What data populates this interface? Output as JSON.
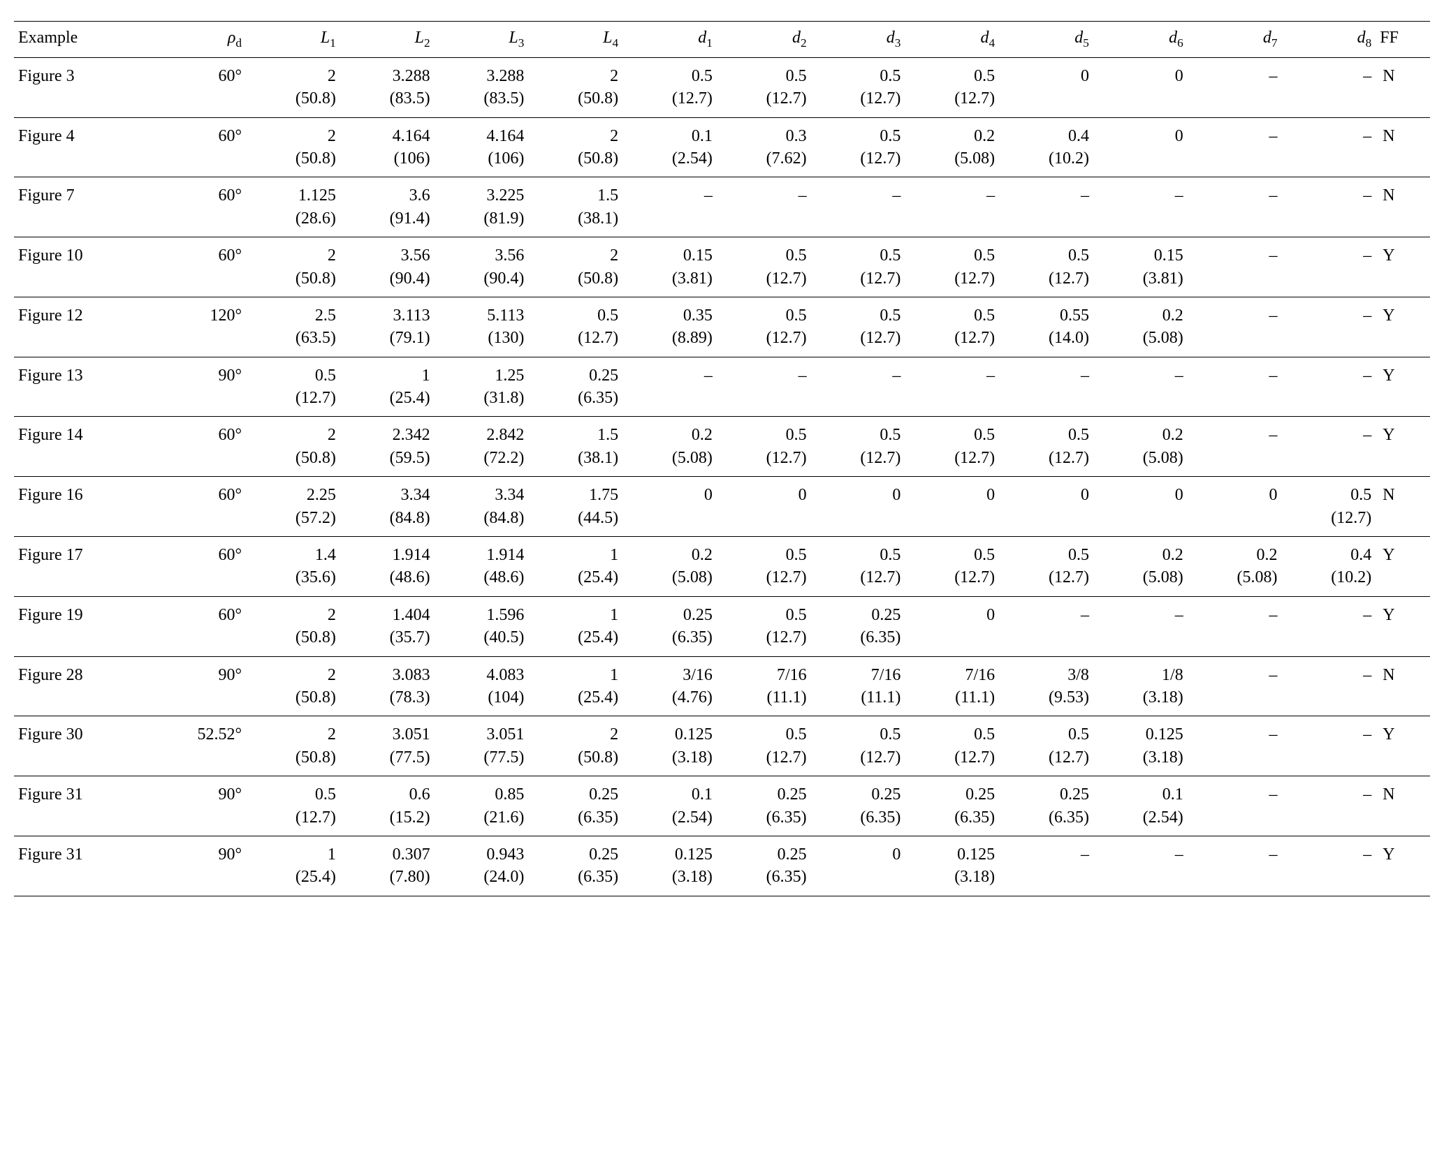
{
  "table": {
    "type": "table",
    "columns": [
      {
        "key": "example",
        "label_html": "Example",
        "align": "left"
      },
      {
        "key": "rho",
        "label_html": "<i>ρ</i><span class=\"sub\">d</span>",
        "align": "right"
      },
      {
        "key": "L1",
        "label_html": "<i>L</i><span class=\"sub\">1</span>",
        "align": "right"
      },
      {
        "key": "L2",
        "label_html": "<i>L</i><span class=\"sub\">2</span>",
        "align": "right"
      },
      {
        "key": "L3",
        "label_html": "<i>L</i><span class=\"sub\">3</span>",
        "align": "right"
      },
      {
        "key": "L4",
        "label_html": "<i>L</i><span class=\"sub\">4</span>",
        "align": "right"
      },
      {
        "key": "d1",
        "label_html": "<i>d</i><span class=\"sub\">1</span>",
        "align": "right"
      },
      {
        "key": "d2",
        "label_html": "<i>d</i><span class=\"sub\">2</span>",
        "align": "right"
      },
      {
        "key": "d3",
        "label_html": "<i>d</i><span class=\"sub\">3</span>",
        "align": "right"
      },
      {
        "key": "d4",
        "label_html": "<i>d</i><span class=\"sub\">4</span>",
        "align": "right"
      },
      {
        "key": "d5",
        "label_html": "<i>d</i><span class=\"sub\">5</span>",
        "align": "right"
      },
      {
        "key": "d6",
        "label_html": "<i>d</i><span class=\"sub\">6</span>",
        "align": "right"
      },
      {
        "key": "d7",
        "label_html": "<i>d</i><span class=\"sub\">7</span>",
        "align": "right"
      },
      {
        "key": "d8",
        "label_html": "<i>d</i><span class=\"sub\">8</span>",
        "align": "right"
      },
      {
        "key": "ff",
        "label_html": "FF",
        "align": "left"
      }
    ],
    "rows": [
      {
        "example": "Figure 3",
        "rho": "60°",
        "L1": {
          "main": "2",
          "sec": "(50.8)"
        },
        "L2": {
          "main": "3.288",
          "sec": "(83.5)"
        },
        "L3": {
          "main": "3.288",
          "sec": "(83.5)"
        },
        "L4": {
          "main": "2",
          "sec": "(50.8)"
        },
        "d1": {
          "main": "0.5",
          "sec": "(12.7)"
        },
        "d2": {
          "main": "0.5",
          "sec": "(12.7)"
        },
        "d3": {
          "main": "0.5",
          "sec": "(12.7)"
        },
        "d4": {
          "main": "0.5",
          "sec": "(12.7)"
        },
        "d5": {
          "main": "0"
        },
        "d6": {
          "main": "0"
        },
        "d7": {
          "main": "–"
        },
        "d8": {
          "main": "–"
        },
        "ff": "N"
      },
      {
        "example": "Figure 4",
        "rho": "60°",
        "L1": {
          "main": "2",
          "sec": "(50.8)"
        },
        "L2": {
          "main": "4.164",
          "sec": "(106)"
        },
        "L3": {
          "main": "4.164",
          "sec": "(106)"
        },
        "L4": {
          "main": "2",
          "sec": "(50.8)"
        },
        "d1": {
          "main": "0.1",
          "sec": "(2.54)"
        },
        "d2": {
          "main": "0.3",
          "sec": "(7.62)"
        },
        "d3": {
          "main": "0.5",
          "sec": "(12.7)"
        },
        "d4": {
          "main": "0.2",
          "sec": "(5.08)"
        },
        "d5": {
          "main": "0.4",
          "sec": "(10.2)"
        },
        "d6": {
          "main": "0"
        },
        "d7": {
          "main": "–"
        },
        "d8": {
          "main": "–"
        },
        "ff": "N"
      },
      {
        "example": "Figure 7",
        "rho": "60°",
        "L1": {
          "main": "1.125",
          "sec": "(28.6)"
        },
        "L2": {
          "main": "3.6",
          "sec": "(91.4)"
        },
        "L3": {
          "main": "3.225",
          "sec": "(81.9)"
        },
        "L4": {
          "main": "1.5",
          "sec": "(38.1)"
        },
        "d1": {
          "main": "–"
        },
        "d2": {
          "main": "–"
        },
        "d3": {
          "main": "–"
        },
        "d4": {
          "main": "–"
        },
        "d5": {
          "main": "–"
        },
        "d6": {
          "main": "–"
        },
        "d7": {
          "main": "–"
        },
        "d8": {
          "main": "–"
        },
        "ff": "N"
      },
      {
        "example": "Figure 10",
        "rho": "60°",
        "L1": {
          "main": "2",
          "sec": "(50.8)"
        },
        "L2": {
          "main": "3.56",
          "sec": "(90.4)"
        },
        "L3": {
          "main": "3.56",
          "sec": "(90.4)"
        },
        "L4": {
          "main": "2",
          "sec": "(50.8)"
        },
        "d1": {
          "main": "0.15",
          "sec": "(3.81)"
        },
        "d2": {
          "main": "0.5",
          "sec": "(12.7)"
        },
        "d3": {
          "main": "0.5",
          "sec": "(12.7)"
        },
        "d4": {
          "main": "0.5",
          "sec": "(12.7)"
        },
        "d5": {
          "main": "0.5",
          "sec": "(12.7)"
        },
        "d6": {
          "main": "0.15",
          "sec": "(3.81)"
        },
        "d7": {
          "main": "–"
        },
        "d8": {
          "main": "–"
        },
        "ff": "Y"
      },
      {
        "example": "Figure 12",
        "rho": "120°",
        "L1": {
          "main": "2.5",
          "sec": "(63.5)"
        },
        "L2": {
          "main": "3.113",
          "sec": "(79.1)"
        },
        "L3": {
          "main": "5.113",
          "sec": "(130)"
        },
        "L4": {
          "main": "0.5",
          "sec": "(12.7)"
        },
        "d1": {
          "main": "0.35",
          "sec": "(8.89)"
        },
        "d2": {
          "main": "0.5",
          "sec": "(12.7)"
        },
        "d3": {
          "main": "0.5",
          "sec": "(12.7)"
        },
        "d4": {
          "main": "0.5",
          "sec": "(12.7)"
        },
        "d5": {
          "main": "0.55",
          "sec": "(14.0)"
        },
        "d6": {
          "main": "0.2",
          "sec": "(5.08)"
        },
        "d7": {
          "main": "–"
        },
        "d8": {
          "main": "–"
        },
        "ff": "Y"
      },
      {
        "example": "Figure 13",
        "rho": "90°",
        "L1": {
          "main": "0.5",
          "sec": "(12.7)"
        },
        "L2": {
          "main": "1",
          "sec": "(25.4)"
        },
        "L3": {
          "main": "1.25",
          "sec": "(31.8)"
        },
        "L4": {
          "main": "0.25",
          "sec": "(6.35)"
        },
        "d1": {
          "main": "–"
        },
        "d2": {
          "main": "–"
        },
        "d3": {
          "main": "–"
        },
        "d4": {
          "main": "–"
        },
        "d5": {
          "main": "–"
        },
        "d6": {
          "main": "–"
        },
        "d7": {
          "main": "–"
        },
        "d8": {
          "main": "–"
        },
        "ff": "Y"
      },
      {
        "example": "Figure 14",
        "rho": "60°",
        "L1": {
          "main": "2",
          "sec": "(50.8)"
        },
        "L2": {
          "main": "2.342",
          "sec": "(59.5)"
        },
        "L3": {
          "main": "2.842",
          "sec": "(72.2)"
        },
        "L4": {
          "main": "1.5",
          "sec": "(38.1)"
        },
        "d1": {
          "main": "0.2",
          "sec": "(5.08)"
        },
        "d2": {
          "main": "0.5",
          "sec": "(12.7)"
        },
        "d3": {
          "main": "0.5",
          "sec": "(12.7)"
        },
        "d4": {
          "main": "0.5",
          "sec": "(12.7)"
        },
        "d5": {
          "main": "0.5",
          "sec": "(12.7)"
        },
        "d6": {
          "main": "0.2",
          "sec": "(5.08)"
        },
        "d7": {
          "main": "–"
        },
        "d8": {
          "main": "–"
        },
        "ff": "Y"
      },
      {
        "example": "Figure 16",
        "rho": "60°",
        "L1": {
          "main": "2.25",
          "sec": "(57.2)"
        },
        "L2": {
          "main": "3.34",
          "sec": "(84.8)"
        },
        "L3": {
          "main": "3.34",
          "sec": "(84.8)"
        },
        "L4": {
          "main": "1.75",
          "sec": "(44.5)"
        },
        "d1": {
          "main": "0"
        },
        "d2": {
          "main": "0"
        },
        "d3": {
          "main": "0"
        },
        "d4": {
          "main": "0"
        },
        "d5": {
          "main": "0"
        },
        "d6": {
          "main": "0"
        },
        "d7": {
          "main": "0"
        },
        "d8": {
          "main": "0.5",
          "sec": "(12.7)"
        },
        "ff": "N"
      },
      {
        "example": "Figure 17",
        "rho": "60°",
        "L1": {
          "main": "1.4",
          "sec": "(35.6)"
        },
        "L2": {
          "main": "1.914",
          "sec": "(48.6)"
        },
        "L3": {
          "main": "1.914",
          "sec": "(48.6)"
        },
        "L4": {
          "main": "1",
          "sec": "(25.4)"
        },
        "d1": {
          "main": "0.2",
          "sec": "(5.08)"
        },
        "d2": {
          "main": "0.5",
          "sec": "(12.7)"
        },
        "d3": {
          "main": "0.5",
          "sec": "(12.7)"
        },
        "d4": {
          "main": "0.5",
          "sec": "(12.7)"
        },
        "d5": {
          "main": "0.5",
          "sec": "(12.7)"
        },
        "d6": {
          "main": "0.2",
          "sec": "(5.08)"
        },
        "d7": {
          "main": "0.2",
          "sec": "(5.08)"
        },
        "d8": {
          "main": "0.4",
          "sec": "(10.2)"
        },
        "ff": "Y"
      },
      {
        "example": "Figure 19",
        "rho": "60°",
        "L1": {
          "main": "2",
          "sec": "(50.8)"
        },
        "L2": {
          "main": "1.404",
          "sec": "(35.7)"
        },
        "L3": {
          "main": "1.596",
          "sec": "(40.5)"
        },
        "L4": {
          "main": "1",
          "sec": "(25.4)"
        },
        "d1": {
          "main": "0.25",
          "sec": "(6.35)"
        },
        "d2": {
          "main": "0.5",
          "sec": "(12.7)"
        },
        "d3": {
          "main": "0.25",
          "sec": "(6.35)"
        },
        "d4": {
          "main": "0"
        },
        "d5": {
          "main": "–"
        },
        "d6": {
          "main": "–"
        },
        "d7": {
          "main": "–"
        },
        "d8": {
          "main": "–"
        },
        "ff": "Y"
      },
      {
        "example": "Figure 28",
        "rho": "90°",
        "L1": {
          "main": "2",
          "sec": "(50.8)"
        },
        "L2": {
          "main": "3.083",
          "sec": "(78.3)"
        },
        "L3": {
          "main": "4.083",
          "sec": "(104)"
        },
        "L4": {
          "main": "1",
          "sec": "(25.4)"
        },
        "d1": {
          "main": "3/16",
          "sec": "(4.76)"
        },
        "d2": {
          "main": "7/16",
          "sec": "(11.1)"
        },
        "d3": {
          "main": "7/16",
          "sec": "(11.1)"
        },
        "d4": {
          "main": "7/16",
          "sec": "(11.1)"
        },
        "d5": {
          "main": "3/8",
          "sec": "(9.53)"
        },
        "d6": {
          "main": "1/8",
          "sec": "(3.18)"
        },
        "d7": {
          "main": "–"
        },
        "d8": {
          "main": "–"
        },
        "ff": "N"
      },
      {
        "example": "Figure 30",
        "rho": "52.52°",
        "L1": {
          "main": "2",
          "sec": "(50.8)"
        },
        "L2": {
          "main": "3.051",
          "sec": "(77.5)"
        },
        "L3": {
          "main": "3.051",
          "sec": "(77.5)"
        },
        "L4": {
          "main": "2",
          "sec": "(50.8)"
        },
        "d1": {
          "main": "0.125",
          "sec": "(3.18)"
        },
        "d2": {
          "main": "0.5",
          "sec": "(12.7)"
        },
        "d3": {
          "main": "0.5",
          "sec": "(12.7)"
        },
        "d4": {
          "main": "0.5",
          "sec": "(12.7)"
        },
        "d5": {
          "main": "0.5",
          "sec": "(12.7)"
        },
        "d6": {
          "main": "0.125",
          "sec": "(3.18)"
        },
        "d7": {
          "main": "–"
        },
        "d8": {
          "main": "–"
        },
        "ff": "Y"
      },
      {
        "example": "Figure 31",
        "rho": "90°",
        "L1": {
          "main": "0.5",
          "sec": "(12.7)"
        },
        "L2": {
          "main": "0.6",
          "sec": "(15.2)"
        },
        "L3": {
          "main": "0.85",
          "sec": "(21.6)"
        },
        "L4": {
          "main": "0.25",
          "sec": "(6.35)"
        },
        "d1": {
          "main": "0.1",
          "sec": "(2.54)"
        },
        "d2": {
          "main": "0.25",
          "sec": "(6.35)"
        },
        "d3": {
          "main": "0.25",
          "sec": "(6.35)"
        },
        "d4": {
          "main": "0.25",
          "sec": "(6.35)"
        },
        "d5": {
          "main": "0.25",
          "sec": "(6.35)"
        },
        "d6": {
          "main": "0.1",
          "sec": "(2.54)"
        },
        "d7": {
          "main": "–"
        },
        "d8": {
          "main": "–"
        },
        "ff": "N"
      },
      {
        "example": "Figure 31",
        "rho": "90°",
        "L1": {
          "main": "1",
          "sec": "(25.4)"
        },
        "L2": {
          "main": "0.307",
          "sec": "(7.80)"
        },
        "L3": {
          "main": "0.943",
          "sec": "(24.0)"
        },
        "L4": {
          "main": "0.25",
          "sec": "(6.35)"
        },
        "d1": {
          "main": "0.125",
          "sec": "(3.18)"
        },
        "d2": {
          "main": "0.25",
          "sec": "(6.35)"
        },
        "d3": {
          "main": "0"
        },
        "d4": {
          "main": "0.125",
          "sec": "(3.18)"
        },
        "d5": {
          "main": "–"
        },
        "d6": {
          "main": "–"
        },
        "d7": {
          "main": "–"
        },
        "d8": {
          "main": "–"
        },
        "ff": "Y"
      }
    ]
  }
}
